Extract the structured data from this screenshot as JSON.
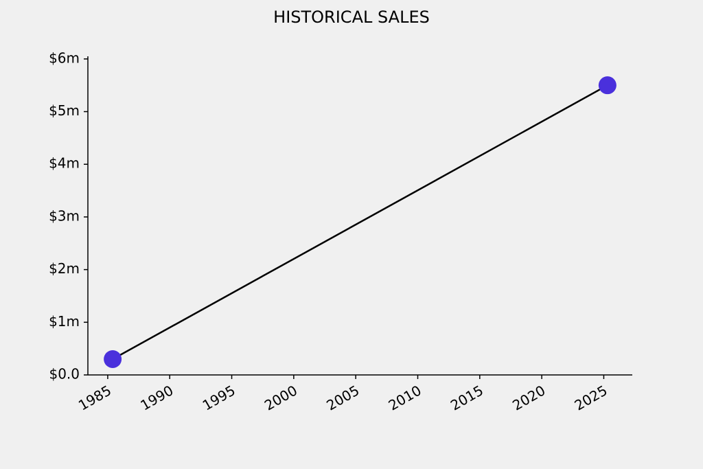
{
  "chart_data": {
    "type": "line",
    "title": "HISTORICAL SALES",
    "x": [
      1985.4,
      2025.3
    ],
    "values": [
      300000,
      5500000
    ],
    "line_color": "#000000",
    "marker_color": "#4a30dc",
    "xlim": [
      1983.4,
      2027.3
    ],
    "xticks": [
      1985,
      1990,
      1995,
      2000,
      2005,
      2010,
      2015,
      2020,
      2025
    ],
    "ylim": [
      0,
      6050000
    ],
    "yticks": [
      {
        "value": 0,
        "label": "$0.0"
      },
      {
        "value": 1000000,
        "label": "$1m"
      },
      {
        "value": 2000000,
        "label": "$2m"
      },
      {
        "value": 3000000,
        "label": "$3m"
      },
      {
        "value": 4000000,
        "label": "$4m"
      },
      {
        "value": 5000000,
        "label": "$5m"
      },
      {
        "value": 6000000,
        "label": "$6m"
      }
    ],
    "grid": false
  }
}
